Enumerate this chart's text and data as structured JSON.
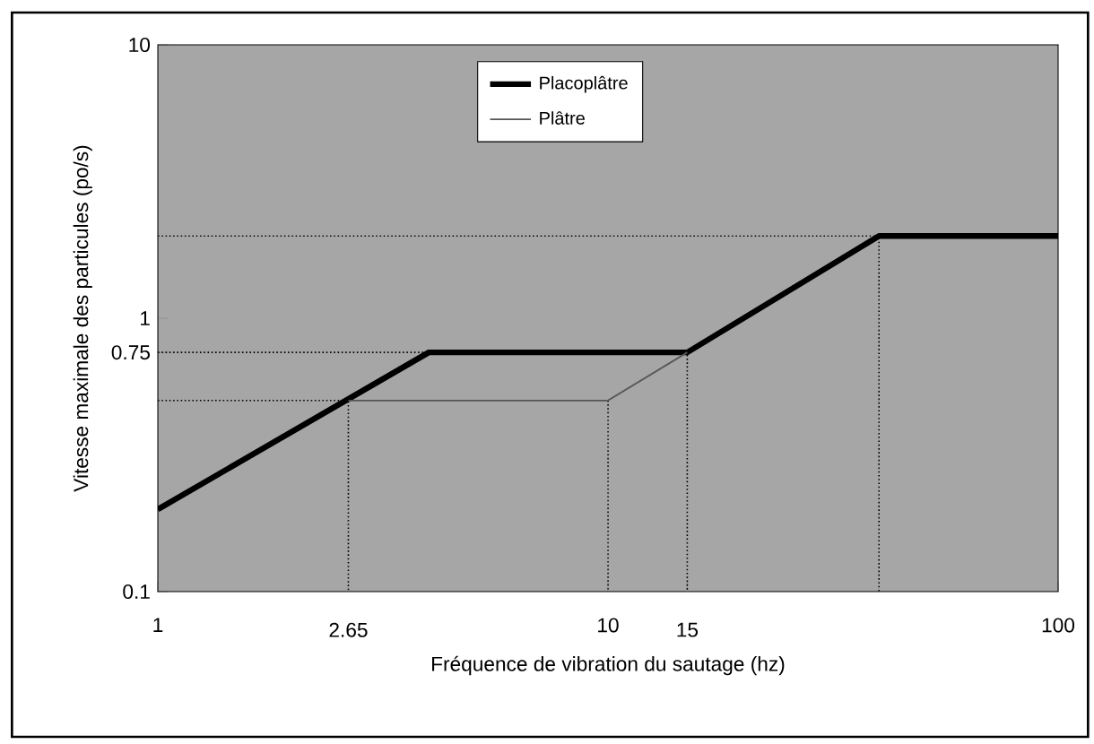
{
  "chart_data": {
    "type": "line",
    "xlabel": "Fréquence de vibration du sautage (hz)",
    "ylabel": "Vitesse maximale des particules (po/s)",
    "log": "xy",
    "xlim": [
      1,
      100
    ],
    "ylim": [
      0.1,
      10
    ],
    "xticks": [
      1,
      2.65,
      10,
      15,
      100
    ],
    "yticks": [
      0.1,
      0.75,
      1,
      10
    ],
    "grid": false,
    "legend": "top",
    "marker": "none",
    "series": [
      {
        "name": "Placoplâtre",
        "color": "#000000",
        "x": [
          1,
          4,
          15,
          40,
          100
        ],
        "values": [
          0.2,
          0.75,
          0.75,
          2,
          2
        ]
      },
      {
        "name": "Plâtre",
        "color": "#555555",
        "x": [
          2.65,
          10,
          15
        ],
        "values": [
          0.5,
          0.5,
          0.75
        ]
      },
      {
        "color": "#000000",
        "line_style": "dashed",
        "x": [
          1,
          2.65,
          2.65
        ],
        "values": [
          0.5,
          0.5,
          0.1
        ]
      },
      {
        "color": "#000000",
        "line_style": "dashed",
        "x": [
          10,
          10
        ],
        "values": [
          0.5,
          0.1
        ]
      },
      {
        "color": "#000000",
        "line_style": "dashed",
        "x": [
          1,
          15,
          15
        ],
        "values": [
          0.75,
          0.75,
          0.1
        ]
      },
      {
        "color": "#000000",
        "line_style": "dashed",
        "x": [
          1,
          40,
          40
        ],
        "values": [
          2,
          2,
          0.1
        ]
      }
    ]
  }
}
